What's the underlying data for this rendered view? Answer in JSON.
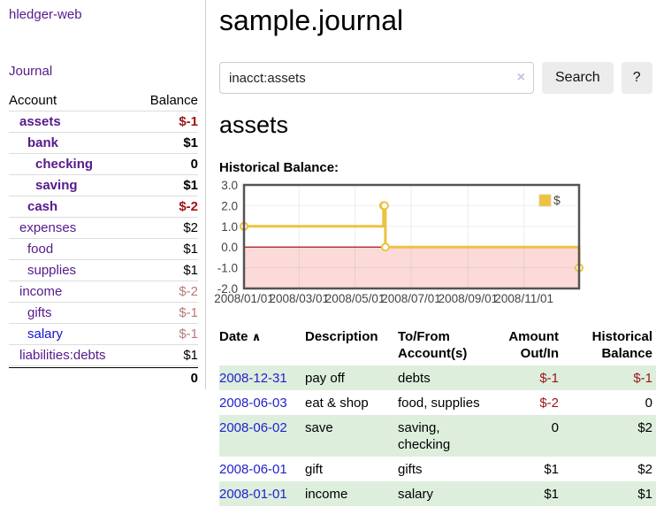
{
  "brand": "hledger-web",
  "nav": {
    "journal_label": "Journal"
  },
  "sidebar": {
    "columns": {
      "account": "Account",
      "balance": "Balance"
    },
    "accounts": [
      {
        "name": "assets",
        "balance": "$-1"
      },
      {
        "name": "bank",
        "balance": "$1"
      },
      {
        "name": "checking",
        "balance": "0"
      },
      {
        "name": "saving",
        "balance": "$1"
      },
      {
        "name": "cash",
        "balance": "$-2"
      },
      {
        "name": "expenses",
        "balance": "$2"
      },
      {
        "name": "food",
        "balance": "$1"
      },
      {
        "name": "supplies",
        "balance": "$1"
      },
      {
        "name": "income",
        "balance": "$-2"
      },
      {
        "name": "gifts",
        "balance": "$-1"
      },
      {
        "name": "salary",
        "balance": "$-1"
      },
      {
        "name": "liabilities:debts",
        "balance": "$1"
      }
    ],
    "total": "0"
  },
  "header": {
    "title": "sample.journal"
  },
  "search": {
    "value": "inacct:assets",
    "clear_icon": "×",
    "button_label": "Search",
    "help_label": "?"
  },
  "account_page": {
    "title": "assets",
    "chart_heading": "Historical Balance:"
  },
  "chart_data": {
    "type": "line",
    "title": "Historical Balance:",
    "step": true,
    "series": [
      {
        "name": "$",
        "color": "#edc240",
        "points": [
          [
            "2008-01-01",
            1
          ],
          [
            "2008-06-01",
            2
          ],
          [
            "2008-06-02",
            2
          ],
          [
            "2008-06-03",
            0
          ],
          [
            "2008-12-31",
            -1
          ]
        ]
      }
    ],
    "x_ticks": [
      "2008/01/01",
      "2008/03/01",
      "2008/05/01",
      "2008/07/01",
      "2008/09/01",
      "2008/11/01"
    ],
    "y_ticks": [
      3.0,
      2.0,
      1.0,
      0.0,
      -1.0,
      -2.0
    ],
    "xlim": [
      "2008-01-01",
      "2008-12-31"
    ],
    "ylim": [
      -2,
      3
    ],
    "grid": true,
    "legend_position": "top-right",
    "negative_region_color": "#fcdada",
    "zero_line_color": "#9e0000",
    "border_color": "#545454"
  },
  "register": {
    "headers": {
      "date": "Date",
      "sort_icon": "∧",
      "description": "Description",
      "tofrom": "To/From Account(s)",
      "amount": "Amount Out/In",
      "balance": "Historical Balance"
    },
    "rows": [
      {
        "date": "2008-12-31",
        "description": "pay off",
        "accounts": "debts",
        "amount": "$-1",
        "balance": "$-1"
      },
      {
        "date": "2008-06-03",
        "description": "eat & shop",
        "accounts": "food, supplies",
        "amount": "$-2",
        "balance": "0"
      },
      {
        "date": "2008-06-02",
        "description": "save",
        "accounts": "saving,\nchecking",
        "amount": "0",
        "balance": "$2"
      },
      {
        "date": "2008-06-01",
        "description": "gift",
        "accounts": "gifts",
        "amount": "$1",
        "balance": "$2"
      },
      {
        "date": "2008-01-01",
        "description": "income",
        "accounts": "salary",
        "amount": "$1",
        "balance": "$1"
      }
    ]
  },
  "colors": {
    "accent_purple": "#551a8b",
    "link_blue": "#2222cc",
    "negative_strong": "#9d1414",
    "negative_muted": "#b97a7a",
    "row_stripe_green": "#ddeedd",
    "chart_line": "#edc240"
  }
}
